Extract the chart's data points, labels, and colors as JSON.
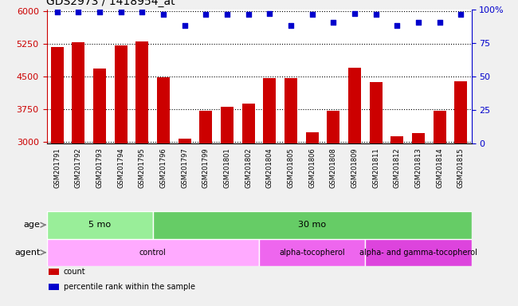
{
  "title": "GDS2973 / 1418954_at",
  "samples": [
    "GSM201791",
    "GSM201792",
    "GSM201793",
    "GSM201794",
    "GSM201795",
    "GSM201796",
    "GSM201797",
    "GSM201799",
    "GSM201801",
    "GSM201802",
    "GSM201804",
    "GSM201805",
    "GSM201806",
    "GSM201808",
    "GSM201809",
    "GSM201811",
    "GSM201812",
    "GSM201813",
    "GSM201814",
    "GSM201815"
  ],
  "counts": [
    5180,
    5290,
    4680,
    5220,
    5300,
    4480,
    3060,
    3720,
    3800,
    3880,
    4460,
    4460,
    3220,
    3720,
    4700,
    4380,
    3130,
    3200,
    3720,
    4390
  ],
  "percentile": [
    98,
    98,
    98,
    98,
    98,
    96,
    88,
    96,
    96,
    96,
    97,
    88,
    96,
    90,
    97,
    96,
    88,
    90,
    90,
    96
  ],
  "ylim_left": [
    2950,
    6050
  ],
  "ylim_right": [
    0,
    100
  ],
  "yticks_left": [
    3000,
    3750,
    4500,
    5250,
    6000
  ],
  "yticks_right": [
    0,
    25,
    50,
    75,
    100
  ],
  "bar_color": "#cc0000",
  "dot_color": "#0000cc",
  "bar_width": 0.6,
  "age_groups": [
    {
      "label": "5 mo",
      "start": 0,
      "end": 5,
      "color": "#99ee99"
    },
    {
      "label": "30 mo",
      "start": 5,
      "end": 20,
      "color": "#66cc66"
    }
  ],
  "agent_groups": [
    {
      "label": "control",
      "start": 0,
      "end": 10,
      "color": "#ffaaff"
    },
    {
      "label": "alpha-tocopherol",
      "start": 10,
      "end": 15,
      "color": "#ee66ee"
    },
    {
      "label": "alpha- and gamma-tocopherol",
      "start": 15,
      "end": 20,
      "color": "#dd44dd"
    }
  ],
  "background_color": "#f0f0f0",
  "plot_bg": "#ffffff",
  "dotted_grid_color": "#000000",
  "legend_items": [
    {
      "label": "count",
      "color": "#cc0000",
      "marker": "s"
    },
    {
      "label": "percentile rank within the sample",
      "color": "#0000cc",
      "marker": "s"
    }
  ]
}
